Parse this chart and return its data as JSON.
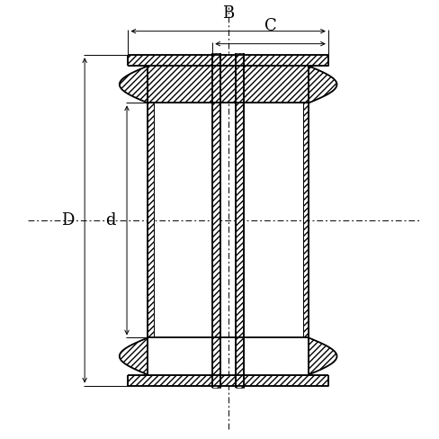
{
  "bg_color": "#ffffff",
  "line_color": "#000000",
  "fig_width": 4.88,
  "fig_height": 4.88,
  "dpi": 100,
  "label_B": "B",
  "label_C": "C",
  "label_D": "D",
  "label_d": "d"
}
